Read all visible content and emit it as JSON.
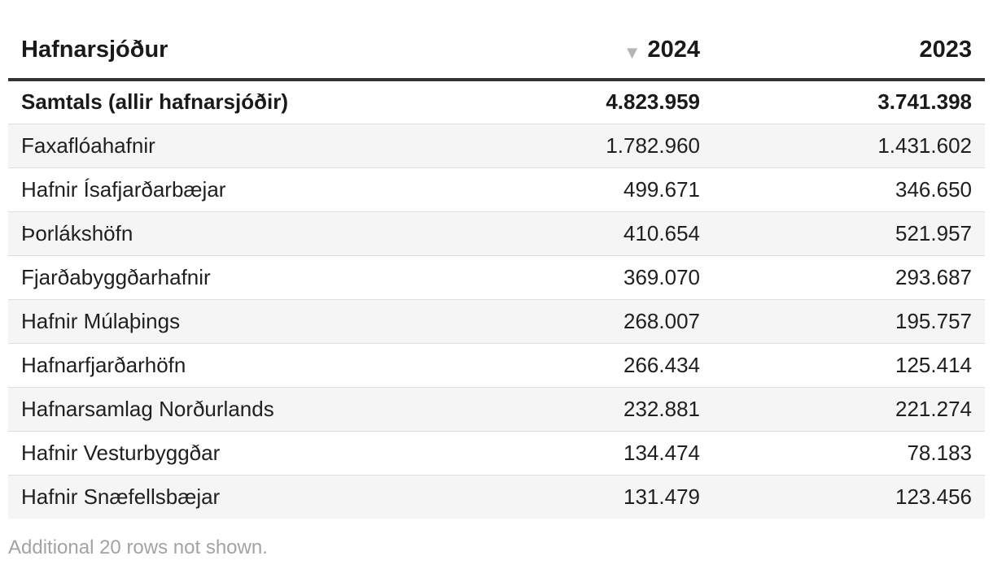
{
  "table": {
    "headers": {
      "name": "Hafnarsjóður",
      "col1": "2024",
      "col2": "2023",
      "sort_icon": "sort-descending-icon"
    },
    "rows": [
      {
        "name": "Samtals (allir hafnarsjóðir)",
        "v2024": "4.823.959",
        "v2023": "3.741.398"
      },
      {
        "name": "Faxaflóahafnir",
        "v2024": "1.782.960",
        "v2023": "1.431.602"
      },
      {
        "name": "Hafnir Ísafjarðarbæjar",
        "v2024": "499.671",
        "v2023": "346.650"
      },
      {
        "name": "Þorlákshöfn",
        "v2024": "410.654",
        "v2023": "521.957"
      },
      {
        "name": "Fjarðabyggðarhafnir",
        "v2024": "369.070",
        "v2023": "293.687"
      },
      {
        "name": "Hafnir Múlaþings",
        "v2024": "268.007",
        "v2023": "195.757"
      },
      {
        "name": "Hafnarfjarðarhöfn",
        "v2024": "266.434",
        "v2023": "125.414"
      },
      {
        "name": "Hafnarsamlag Norðurlands",
        "v2024": "232.881",
        "v2023": "221.274"
      },
      {
        "name": "Hafnir Vesturbyggðar",
        "v2024": "134.474",
        "v2023": "78.183"
      },
      {
        "name": "Hafnir Snæfellsbæjar",
        "v2024": "131.479",
        "v2023": "123.456"
      }
    ],
    "footnote": "Additional 20 rows not shown."
  },
  "chart_data": {
    "type": "table",
    "title": "",
    "columns": [
      "Hafnarsjóður",
      "2024",
      "2023"
    ],
    "sorted_by": "2024",
    "sort_order": "descending",
    "rows": [
      {
        "label": "Samtals (allir hafnarsjóðir)",
        "values": [
          4823959,
          3741398
        ]
      },
      {
        "label": "Faxaflóahafnir",
        "values": [
          1782960,
          1431602
        ]
      },
      {
        "label": "Hafnir Ísafjarðarbæjar",
        "values": [
          499671,
          346650
        ]
      },
      {
        "label": "Þorlákshöfn",
        "values": [
          410654,
          521957
        ]
      },
      {
        "label": "Fjarðabyggðarhafnir",
        "values": [
          369070,
          293687
        ]
      },
      {
        "label": "Hafnir Múlaþings",
        "values": [
          268007,
          195757
        ]
      },
      {
        "label": "Hafnarfjarðarhöfn",
        "values": [
          266434,
          125414
        ]
      },
      {
        "label": "Hafnarsamlag Norðurlands",
        "values": [
          232881,
          221274
        ]
      },
      {
        "label": "Hafnir Vesturbyggðar",
        "values": [
          134474,
          78183
        ]
      },
      {
        "label": "Hafnir Snæfellsbæjar",
        "values": [
          131479,
          123456
        ]
      }
    ]
  }
}
